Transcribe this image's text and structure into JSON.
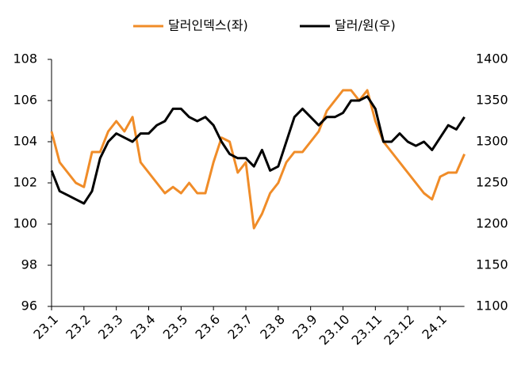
{
  "chart_data": {
    "type": "line",
    "categories": [
      "23.1",
      null,
      null,
      null,
      "23.2",
      null,
      null,
      null,
      "23.3",
      null,
      null,
      null,
      "23.4",
      null,
      null,
      null,
      "23.5",
      null,
      null,
      null,
      "23.6",
      null,
      null,
      null,
      "23.7",
      null,
      null,
      null,
      "23.8",
      null,
      null,
      null,
      "23.9",
      null,
      null,
      null,
      "23.10",
      null,
      null,
      null,
      "23.11",
      null,
      null,
      null,
      "23.12",
      null,
      null,
      null,
      "24.1",
      null,
      null,
      null
    ],
    "series": [
      {
        "name": "달러인덱스(좌)",
        "color": "#f08c28",
        "axis": "y",
        "values": [
          104.5,
          103,
          102.5,
          102,
          101.8,
          103.5,
          103.5,
          104.5,
          105,
          104.5,
          105.2,
          103,
          102.5,
          102,
          101.5,
          101.8,
          101.5,
          102,
          101.5,
          101.5,
          103,
          104.2,
          104,
          102.5,
          103,
          99.8,
          100.5,
          101.5,
          102,
          103,
          103.5,
          103.5,
          104,
          104.5,
          105.5,
          106,
          106.5,
          106.5,
          106,
          106.5,
          105,
          104,
          103.5,
          103,
          102.5,
          102,
          101.5,
          101.2,
          102.3,
          102.5,
          102.5,
          103.4
        ]
      },
      {
        "name": "달러/원(우)",
        "color": "#000000",
        "axis": "y2",
        "values": [
          1265,
          1240,
          1235,
          1230,
          1225,
          1240,
          1280,
          1300,
          1310,
          1305,
          1300,
          1310,
          1310,
          1320,
          1325,
          1340,
          1340,
          1330,
          1325,
          1330,
          1320,
          1300,
          1285,
          1280,
          1280,
          1270,
          1290,
          1265,
          1270,
          1300,
          1330,
          1340,
          1330,
          1320,
          1330,
          1330,
          1335,
          1350,
          1350,
          1355,
          1340,
          1300,
          1300,
          1310,
          1300,
          1295,
          1300,
          1290,
          1305,
          1320,
          1315,
          1330
        ]
      }
    ],
    "ylim": [
      96,
      108
    ],
    "yticks": [
      96,
      98,
      100,
      102,
      104,
      106,
      108
    ],
    "y2lim": [
      1100,
      1400
    ],
    "y2ticks": [
      1100,
      1150,
      1200,
      1250,
      1300,
      1350,
      1400
    ],
    "legend": "top"
  }
}
